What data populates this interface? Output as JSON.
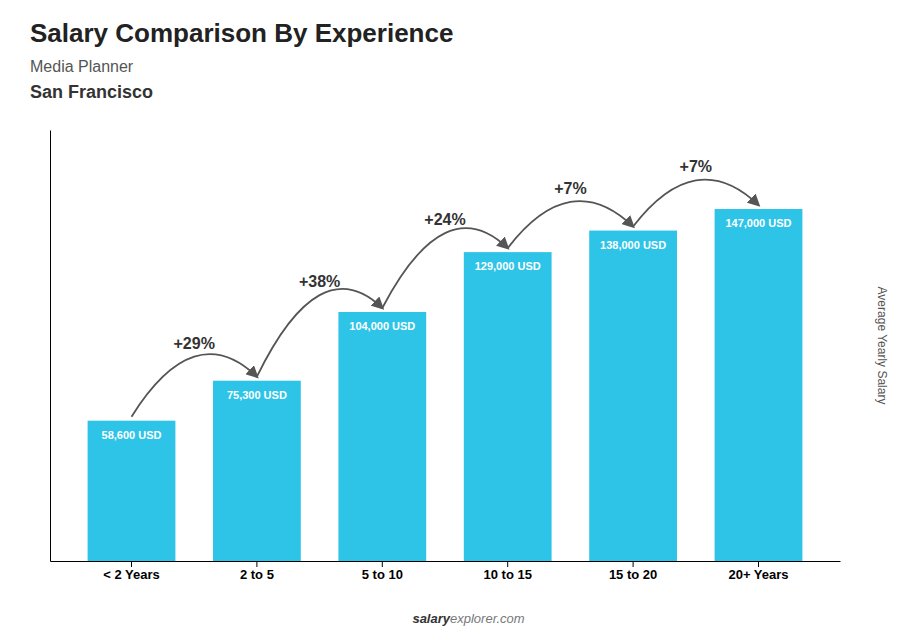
{
  "chart_data": {
    "type": "bar",
    "title": "Salary Comparison By Experience",
    "subtitle": [
      "Media Planner",
      "San Francisco"
    ],
    "categories": [
      "< 2 Years",
      "2 to 5",
      "5 to 10",
      "10 to 15",
      "15 to 20",
      "20+ Years"
    ],
    "values": [
      58600,
      75300,
      104000,
      129000,
      138000,
      147000
    ],
    "value_labels": [
      "58,600 USD",
      "75,300 USD",
      "104,000 USD",
      "129,000 USD",
      "138,000 USD",
      "147,000 USD"
    ],
    "data_labels": true,
    "annotations": [
      "+29%",
      "+38%",
      "+24%",
      "+7%",
      "+7%"
    ],
    "ylabel": "Average Yearly Salary",
    "watermark": [
      "salary",
      "explorer.com"
    ],
    "color": "#2ec4e8",
    "ylim": [
      0,
      180000
    ],
    "tick_labels": "x",
    "grid": false
  }
}
